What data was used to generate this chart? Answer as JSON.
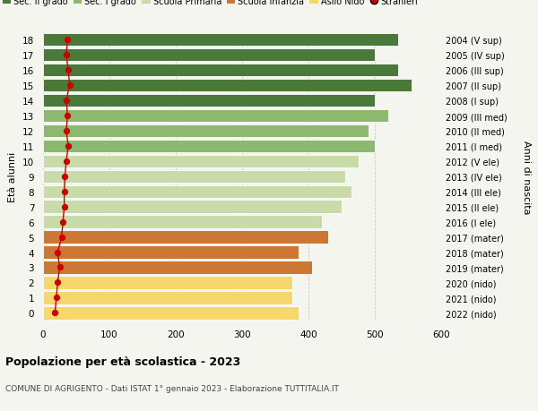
{
  "ages": [
    0,
    1,
    2,
    3,
    4,
    5,
    6,
    7,
    8,
    9,
    10,
    11,
    12,
    13,
    14,
    15,
    16,
    17,
    18
  ],
  "bar_values": [
    385,
    375,
    375,
    405,
    385,
    430,
    420,
    450,
    465,
    455,
    475,
    500,
    490,
    520,
    500,
    555,
    535,
    500,
    535
  ],
  "stranieri_values": [
    18,
    20,
    22,
    25,
    22,
    28,
    30,
    32,
    32,
    33,
    35,
    38,
    35,
    37,
    35,
    40,
    38,
    35,
    37
  ],
  "right_labels": [
    "2022 (nido)",
    "2021 (nido)",
    "2020 (nido)",
    "2019 (mater)",
    "2018 (mater)",
    "2017 (mater)",
    "2016 (I ele)",
    "2015 (II ele)",
    "2014 (III ele)",
    "2013 (IV ele)",
    "2012 (V ele)",
    "2011 (I med)",
    "2010 (II med)",
    "2009 (III med)",
    "2008 (I sup)",
    "2007 (II sup)",
    "2006 (III sup)",
    "2005 (IV sup)",
    "2004 (V sup)"
  ],
  "bar_colors": [
    "#f5d76e",
    "#f5d76e",
    "#f5d76e",
    "#cc7733",
    "#cc7733",
    "#cc7733",
    "#c8dba8",
    "#c8dba8",
    "#c8dba8",
    "#c8dba8",
    "#c8dba8",
    "#8db870",
    "#8db870",
    "#8db870",
    "#4a7a3a",
    "#4a7a3a",
    "#4a7a3a",
    "#4a7a3a",
    "#4a7a3a"
  ],
  "legend_labels": [
    "Sec. II grado",
    "Sec. I grado",
    "Scuola Primaria",
    "Scuola Infanzia",
    "Asilo Nido",
    "Stranieri"
  ],
  "legend_colors": [
    "#4a7a3a",
    "#8db870",
    "#c8dba8",
    "#cc7733",
    "#f5d76e",
    "#cc0000"
  ],
  "xlabel_bottom": "Popolazione per età scolastica - 2023",
  "subtitle": "COMUNE DI AGRIGENTO - Dati ISTAT 1° gennaio 2023 - Elaborazione TUTTITALIA.IT",
  "ylabel_left": "Età alunni",
  "ylabel_right": "Anni di nascita",
  "xlim": [
    0,
    600
  ],
  "background_color": "#f5f5f0",
  "bar_edgecolor": "#ffffff",
  "grid_color": "#cccccc",
  "stranieri_color": "#cc0000",
  "stranieri_linecolor": "#cc0000"
}
